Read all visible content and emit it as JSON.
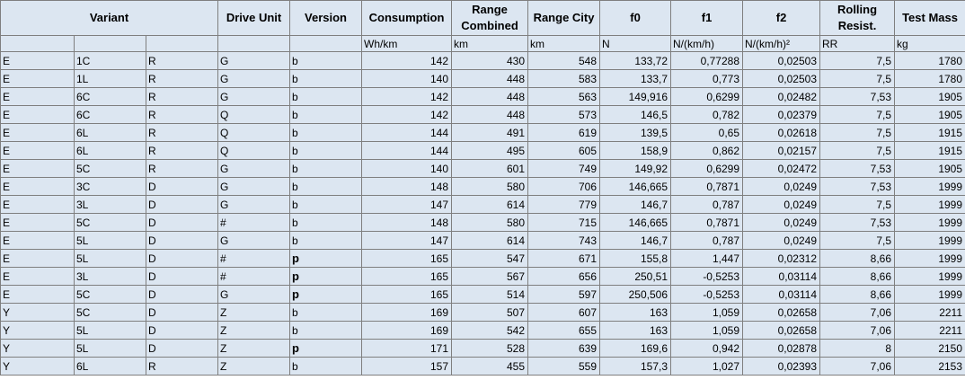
{
  "table": {
    "headers": [
      "Variant",
      "Drive Unit",
      "Version",
      "Consumption",
      "Range Combined",
      "Range City",
      "f0",
      "f1",
      "f2",
      "Rolling Resist.",
      "Test Mass"
    ],
    "units": [
      "Wh/km",
      "km",
      "km",
      "N",
      "N/(km/h)",
      "N/(km/h)²",
      "RR",
      "kg"
    ],
    "rows": [
      [
        "E",
        "1C",
        "R",
        "G",
        "b",
        "142",
        "430",
        "548",
        "133,72",
        "0,77288",
        "0,02503",
        "7,5",
        "1780"
      ],
      [
        "E",
        "1L",
        "R",
        "G",
        "b",
        "140",
        "448",
        "583",
        "133,7",
        "0,773",
        "0,02503",
        "7,5",
        "1780"
      ],
      [
        "E",
        "6C",
        "R",
        "G",
        "b",
        "142",
        "448",
        "563",
        "149,916",
        "0,6299",
        "0,02482",
        "7,53",
        "1905"
      ],
      [
        "E",
        "6C",
        "R",
        "Q",
        "b",
        "142",
        "448",
        "573",
        "146,5",
        "0,782",
        "0,02379",
        "7,5",
        "1905"
      ],
      [
        "E",
        "6L",
        "R",
        "Q",
        "b",
        "144",
        "491",
        "619",
        "139,5",
        "0,65",
        "0,02618",
        "7,5",
        "1915"
      ],
      [
        "E",
        "6L",
        "R",
        "Q",
        "b",
        "144",
        "495",
        "605",
        "158,9",
        "0,862",
        "0,02157",
        "7,5",
        "1915"
      ],
      [
        "E",
        "5C",
        "R",
        "G",
        "b",
        "140",
        "601",
        "749",
        "149,92",
        "0,6299",
        "0,02472",
        "7,53",
        "1905"
      ],
      [
        "E",
        "3C",
        "D",
        "G",
        "b",
        "148",
        "580",
        "706",
        "146,665",
        "0,7871",
        "0,0249",
        "7,53",
        "1999"
      ],
      [
        "E",
        "3L",
        "D",
        "G",
        "b",
        "147",
        "614",
        "779",
        "146,7",
        "0,787",
        "0,0249",
        "7,5",
        "1999"
      ],
      [
        "E",
        "5C",
        "D",
        "#",
        "b",
        "148",
        "580",
        "715",
        "146,665",
        "0,7871",
        "0,0249",
        "7,53",
        "1999"
      ],
      [
        "E",
        "5L",
        "D",
        "G",
        "b",
        "147",
        "614",
        "743",
        "146,7",
        "0,787",
        "0,0249",
        "7,5",
        "1999"
      ],
      [
        "E",
        "5L",
        "D",
        "#",
        {
          "text": "p",
          "bold": true
        },
        "165",
        "547",
        "671",
        "155,8",
        "1,447",
        "0,02312",
        "8,66",
        "1999"
      ],
      [
        "E",
        "3L",
        "D",
        "#",
        {
          "text": "p",
          "bold": true
        },
        "165",
        "567",
        "656",
        "250,51",
        "-0,5253",
        "0,03114",
        "8,66",
        "1999"
      ],
      [
        "E",
        "5C",
        "D",
        "G",
        {
          "text": "p",
          "bold": true
        },
        "165",
        "514",
        "597",
        "250,506",
        "-0,5253",
        "0,03114",
        "8,66",
        "1999"
      ],
      [
        "Y",
        "5C",
        "D",
        "Z",
        "b",
        "169",
        "507",
        "607",
        "163",
        "1,059",
        "0,02658",
        "7,06",
        "2211"
      ],
      [
        "Y",
        "5L",
        "D",
        "Z",
        "b",
        "169",
        "542",
        "655",
        "163",
        "1,059",
        "0,02658",
        "7,06",
        "2211"
      ],
      [
        "Y",
        "5L",
        "D",
        "Z",
        {
          "text": "p",
          "bold": true
        },
        "171",
        "528",
        "639",
        "169,6",
        "0,942",
        "0,02878",
        "8",
        "2150"
      ],
      [
        "Y",
        "6L",
        "R",
        "Z",
        "b",
        "157",
        "455",
        "559",
        "157,3",
        "1,027",
        "0,02393",
        "7,06",
        "2153"
      ]
    ]
  }
}
